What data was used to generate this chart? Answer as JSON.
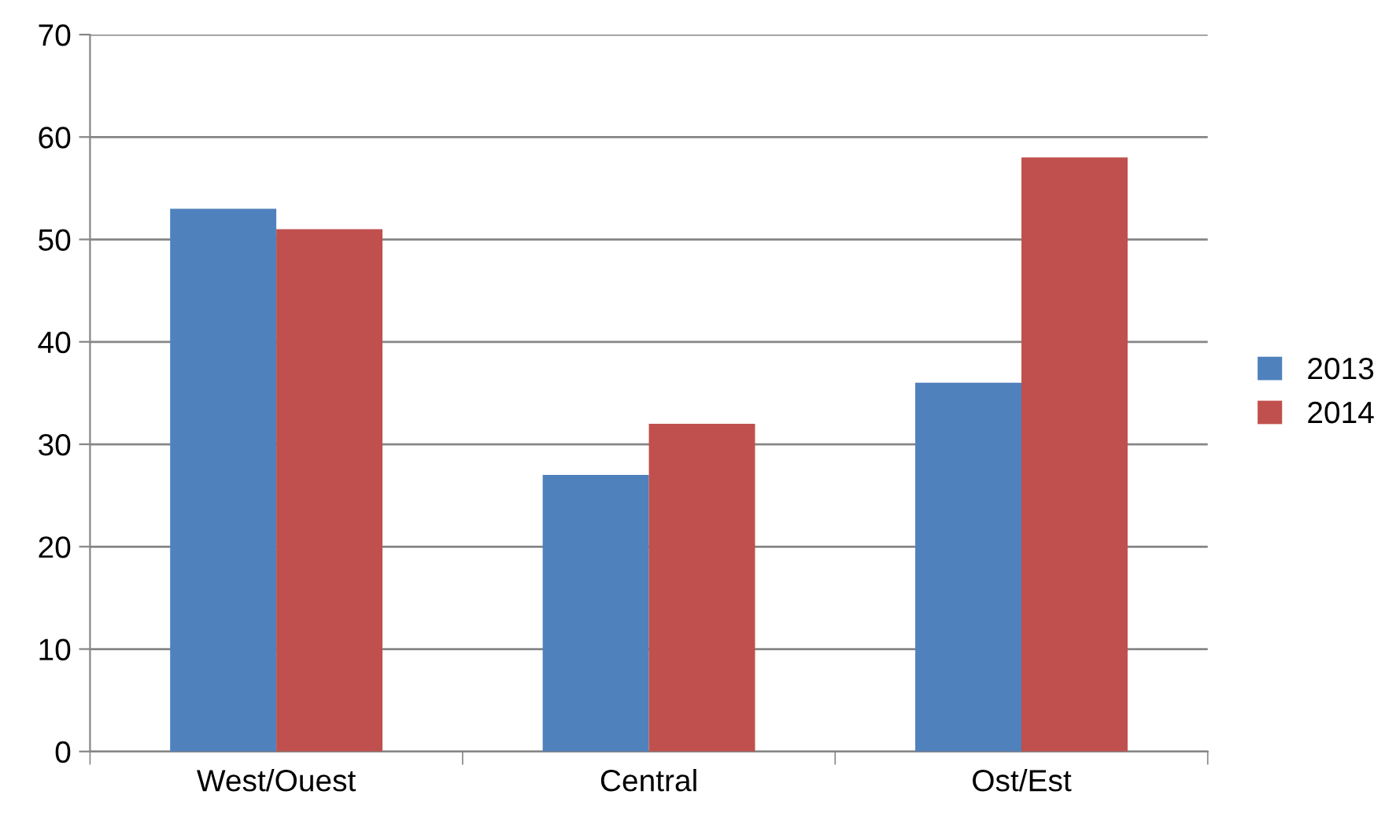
{
  "chart_data": {
    "type": "bar",
    "categories": [
      "West/Ouest",
      "Central",
      "Ost/Est"
    ],
    "series": [
      {
        "name": "2013",
        "color": "#4f81bd",
        "values": [
          53,
          27,
          36
        ]
      },
      {
        "name": "2014",
        "color": "#c0504d",
        "values": [
          51,
          32,
          58
        ]
      }
    ],
    "ylim": [
      0,
      70
    ],
    "yticks": [
      0,
      10,
      20,
      30,
      40,
      50,
      60,
      70
    ],
    "grid": "y",
    "legend": "right"
  }
}
